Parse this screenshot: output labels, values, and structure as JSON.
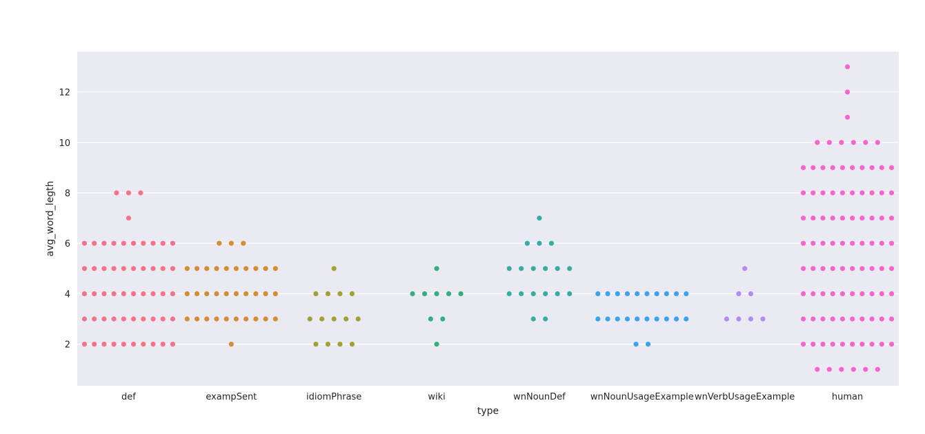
{
  "chart_data": {
    "type": "scatter",
    "subtype": "swarmplot",
    "title": "",
    "xlabel": "type",
    "ylabel": "avg_word_legth",
    "ylim": [
      0.35,
      13.6
    ],
    "yticks": [
      2,
      4,
      6,
      8,
      10,
      12
    ],
    "grid": true,
    "legend": "none",
    "background_color": "#eaeaf2",
    "grid_color": "#ffffff",
    "categories": [
      "def",
      "exampSent",
      "idiomPhrase",
      "wiki",
      "wnNounDef",
      "wnNounUsageExample",
      "wnVerbUsageExample",
      "human"
    ],
    "colors": [
      "#f77189",
      "#d58c32",
      "#a4a031",
      "#33b07a",
      "#36ada4",
      "#3ba3ec",
      "#b689f4",
      "#f565cc"
    ],
    "series": [
      {
        "category": "def",
        "points": [
          {
            "y": 2,
            "n": 10
          },
          {
            "y": 3,
            "n": 10
          },
          {
            "y": 4,
            "n": 10
          },
          {
            "y": 5,
            "n": 10
          },
          {
            "y": 6,
            "n": 10
          },
          {
            "y": 7,
            "n": 1
          },
          {
            "y": 8,
            "n": 3
          }
        ]
      },
      {
        "category": "exampSent",
        "points": [
          {
            "y": 2,
            "n": 1
          },
          {
            "y": 3,
            "n": 10
          },
          {
            "y": 4,
            "n": 10
          },
          {
            "y": 5,
            "n": 10
          },
          {
            "y": 6,
            "n": 3
          }
        ]
      },
      {
        "category": "idiomPhrase",
        "points": [
          {
            "y": 2,
            "n": 4
          },
          {
            "y": 3,
            "n": 5
          },
          {
            "y": 4,
            "n": 4
          },
          {
            "y": 5,
            "n": 1
          }
        ]
      },
      {
        "category": "wiki",
        "points": [
          {
            "y": 2,
            "n": 1
          },
          {
            "y": 3,
            "n": 2
          },
          {
            "y": 4,
            "n": 5
          },
          {
            "y": 5,
            "n": 1
          }
        ]
      },
      {
        "category": "wnNounDef",
        "points": [
          {
            "y": 3,
            "n": 2
          },
          {
            "y": 4,
            "n": 6
          },
          {
            "y": 5,
            "n": 6
          },
          {
            "y": 6,
            "n": 3
          },
          {
            "y": 7,
            "n": 1
          }
        ]
      },
      {
        "category": "wnNounUsageExample",
        "points": [
          {
            "y": 2,
            "n": 2
          },
          {
            "y": 3,
            "n": 10
          },
          {
            "y": 4,
            "n": 10
          }
        ]
      },
      {
        "category": "wnVerbUsageExample",
        "points": [
          {
            "y": 3,
            "n": 4
          },
          {
            "y": 4,
            "n": 2
          },
          {
            "y": 5,
            "n": 1
          }
        ]
      },
      {
        "category": "human",
        "points": [
          {
            "y": 1,
            "n": 6
          },
          {
            "y": 2,
            "n": 10
          },
          {
            "y": 3,
            "n": 10
          },
          {
            "y": 4,
            "n": 10
          },
          {
            "y": 5,
            "n": 10
          },
          {
            "y": 6,
            "n": 10
          },
          {
            "y": 7,
            "n": 10
          },
          {
            "y": 8,
            "n": 10
          },
          {
            "y": 9,
            "n": 10
          },
          {
            "y": 10,
            "n": 6
          },
          {
            "y": 11,
            "n": 1
          },
          {
            "y": 12,
            "n": 1
          },
          {
            "y": 13,
            "n": 1
          }
        ]
      }
    ]
  }
}
